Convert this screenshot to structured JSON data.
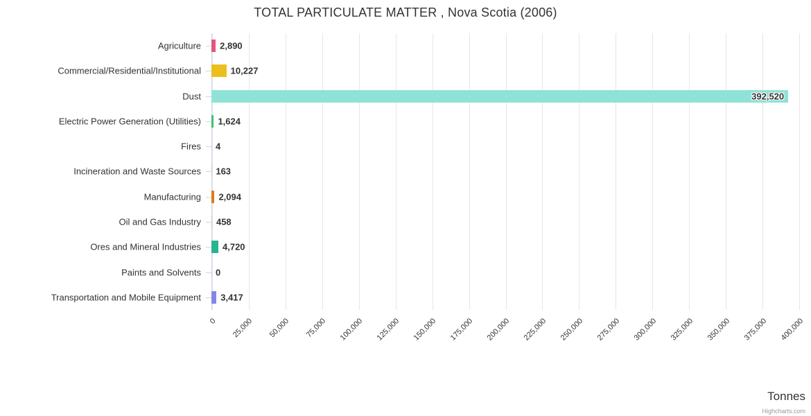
{
  "title": "TOTAL PARTICULATE MATTER , Nova Scotia (2006)",
  "axis_title": "Tonnes",
  "credits": "Highcharts.com",
  "chart_data": {
    "type": "bar",
    "orientation": "horizontal",
    "title": "TOTAL PARTICULATE MATTER , Nova Scotia (2006)",
    "value_axis_title": "Tonnes",
    "axis_range": [
      0,
      400000
    ],
    "tick_interval": 25000,
    "grid": true,
    "legend": "none",
    "categories": [
      "Agriculture",
      "Commercial/Residential/Institutional",
      "Dust",
      "Electric Power Generation (Utilities)",
      "Fires",
      "Incineration and Waste Sources",
      "Manufacturing",
      "Oil and Gas Industry",
      "Ores and Mineral Industries",
      "Paints and Solvents",
      "Transportation and Mobile Equipment"
    ],
    "values": [
      2890,
      10227,
      392520,
      1624,
      4,
      163,
      2094,
      458,
      4720,
      0,
      3417
    ],
    "value_labels": [
      "2,890",
      "10,227",
      "392,520",
      "1,624",
      "4",
      "163",
      "2,094",
      "458",
      "4,720",
      "0",
      "3,417"
    ],
    "colors": [
      "#e4547b",
      "#ecc01c",
      "#8fe2d6",
      "#3bc46d",
      "#cccccc",
      "#cccccc",
      "#de7a16",
      "#cccccc",
      "#27b48e",
      "#cccccc",
      "#8387e4"
    ],
    "label_inside": [
      false,
      false,
      true,
      false,
      false,
      false,
      false,
      false,
      false,
      false,
      false
    ],
    "tick_labels": [
      "0",
      "25,000",
      "50,000",
      "75,000",
      "100,000",
      "125,000",
      "150,000",
      "175,000",
      "200,000",
      "225,000",
      "250,000",
      "275,000",
      "300,000",
      "325,000",
      "350,000",
      "375,000",
      "400,000"
    ]
  }
}
